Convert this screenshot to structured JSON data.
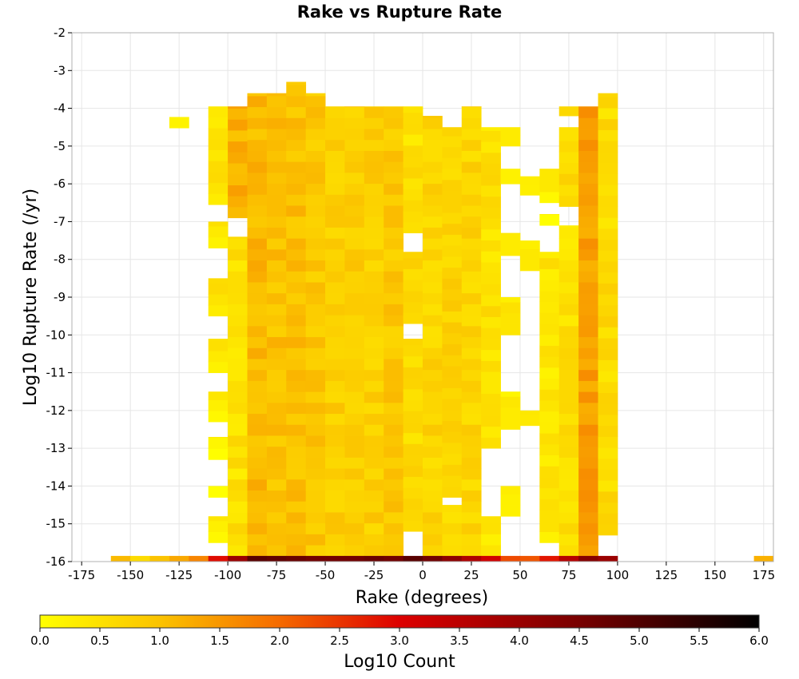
{
  "chart_data": {
    "type": "heatmap",
    "title": "Rake vs Rupture Rate",
    "xlabel": "Rake (degrees)",
    "ylabel": "Log10 Rupture Rate (/yr)",
    "xlim": [
      -180,
      180
    ],
    "ylim": [
      -16,
      -2
    ],
    "xticks": [
      -175,
      -150,
      -125,
      -100,
      -75,
      -50,
      -25,
      0,
      25,
      50,
      75,
      100,
      125,
      150,
      175
    ],
    "yticks": [
      -2,
      -3,
      -4,
      -5,
      -6,
      -7,
      -8,
      -9,
      -10,
      -11,
      -12,
      -13,
      -14,
      -15,
      -16
    ],
    "grid": true,
    "bin_width_x": 10,
    "bin_height_y": 0.29,
    "colorbar": {
      "label": "Log10 Count",
      "range": [
        0,
        6
      ],
      "ticks": [
        "0.0",
        "0.5",
        "1.0",
        "1.5",
        "2.0",
        "2.5",
        "3.0",
        "3.5",
        "4.0",
        "4.5",
        "5.0",
        "5.5",
        "6.0"
      ],
      "stops": [
        {
          "v": 0.0,
          "color": "#ffff00"
        },
        {
          "v": 1.0,
          "color": "#fbc300"
        },
        {
          "v": 2.0,
          "color": "#f56a00"
        },
        {
          "v": 3.0,
          "color": "#dd0000"
        },
        {
          "v": 4.5,
          "color": "#780000"
        },
        {
          "v": 6.0,
          "color": "#000000"
        }
      ]
    },
    "bottom_row": {
      "y_range": [
        -16,
        -15.85
      ],
      "cells": [
        {
          "x": -155,
          "v": 1.1
        },
        {
          "x": -145,
          "v": 0.6
        },
        {
          "x": -135,
          "v": 1.0
        },
        {
          "x": -125,
          "v": 1.3
        },
        {
          "x": -115,
          "v": 1.7
        },
        {
          "x": -105,
          "v": 2.9
        },
        {
          "x": -95,
          "v": 4.0
        },
        {
          "x": -85,
          "v": 4.9
        },
        {
          "x": -75,
          "v": 4.8
        },
        {
          "x": -65,
          "v": 4.7
        },
        {
          "x": -55,
          "v": 4.6
        },
        {
          "x": -45,
          "v": 4.6
        },
        {
          "x": -35,
          "v": 4.6
        },
        {
          "x": -25,
          "v": 4.7
        },
        {
          "x": -15,
          "v": 4.6
        },
        {
          "x": -5,
          "v": 4.9
        },
        {
          "x": 5,
          "v": 4.6
        },
        {
          "x": 15,
          "v": 4.2
        },
        {
          "x": 25,
          "v": 3.7
        },
        {
          "x": 35,
          "v": 3.2
        },
        {
          "x": 45,
          "v": 2.3
        },
        {
          "x": 55,
          "v": 2.2
        },
        {
          "x": 65,
          "v": 2.8
        },
        {
          "x": 75,
          "v": 3.6
        },
        {
          "x": 85,
          "v": 4.3
        },
        {
          "x": 95,
          "v": 4.0
        },
        {
          "x": 175,
          "v": 1.2
        }
      ]
    },
    "columns": [
      {
        "x": -125,
        "ranges": [
          [
            -4.52,
            -4.23,
            0.3
          ]
        ]
      },
      {
        "x": -105,
        "ranges": [
          [
            -6.55,
            -3.95,
            0.5
          ],
          [
            -7.7,
            -7.0,
            0.4
          ],
          [
            -9.5,
            -8.5,
            0.5
          ],
          [
            -11.0,
            -10.1,
            0.4
          ],
          [
            -12.3,
            -11.5,
            0.3
          ],
          [
            -13.3,
            -12.7,
            0.2
          ],
          [
            -14.3,
            -14.0,
            0.1
          ],
          [
            -15.5,
            -14.8,
            0.3
          ]
        ]
      },
      {
        "x": -95,
        "ranges": [
          [
            -6.9,
            -3.95,
            1.2
          ],
          [
            -15.85,
            -7.4,
            0.5
          ]
        ]
      },
      {
        "x": -85,
        "ranges": [
          [
            -15.85,
            -3.6,
            1.1
          ]
        ]
      },
      {
        "x": -75,
        "ranges": [
          [
            -15.85,
            -3.6,
            1.0
          ]
        ]
      },
      {
        "x": -65,
        "ranges": [
          [
            -15.85,
            -3.3,
            1.0
          ]
        ]
      },
      {
        "x": -55,
        "ranges": [
          [
            -15.85,
            -3.6,
            0.9
          ]
        ]
      },
      {
        "x": -45,
        "ranges": [
          [
            -15.85,
            -3.95,
            0.8
          ]
        ]
      },
      {
        "x": -35,
        "ranges": [
          [
            -15.85,
            -3.95,
            0.8
          ]
        ]
      },
      {
        "x": -25,
        "ranges": [
          [
            -15.85,
            -3.95,
            0.8
          ]
        ]
      },
      {
        "x": -15,
        "ranges": [
          [
            -15.85,
            -3.95,
            0.9
          ]
        ]
      },
      {
        "x": -5,
        "ranges": [
          [
            -7.3,
            -3.95,
            0.5
          ],
          [
            -9.7,
            -7.8,
            0.6
          ],
          [
            -15.2,
            -10.1,
            0.6
          ]
        ]
      },
      {
        "x": 5,
        "ranges": [
          [
            -15.85,
            -4.2,
            0.7
          ]
        ]
      },
      {
        "x": 15,
        "ranges": [
          [
            -14.3,
            -4.5,
            0.7
          ],
          [
            -15.85,
            -14.5,
            0.6
          ]
        ]
      },
      {
        "x": 25,
        "ranges": [
          [
            -15.85,
            -3.95,
            0.7
          ]
        ]
      },
      {
        "x": 35,
        "ranges": [
          [
            -13.0,
            -4.5,
            0.5
          ],
          [
            -15.85,
            -14.8,
            0.4
          ]
        ]
      },
      {
        "x": 45,
        "ranges": [
          [
            -5.0,
            -4.5,
            0.2
          ],
          [
            -6.0,
            -5.6,
            0.1
          ],
          [
            -7.9,
            -7.3,
            0.2
          ],
          [
            -10.0,
            -9.0,
            0.3
          ],
          [
            -12.5,
            -11.5,
            0.2
          ],
          [
            -14.8,
            -14.0,
            0.1
          ]
        ]
      },
      {
        "x": 55,
        "ranges": [
          [
            -6.3,
            -5.8,
            0.1
          ],
          [
            -8.3,
            -7.5,
            0.2
          ],
          [
            -12.4,
            -12.0,
            0.2
          ]
        ]
      },
      {
        "x": 65,
        "ranges": [
          [
            -6.5,
            -5.6,
            0.3
          ],
          [
            -7.1,
            -6.8,
            0.2
          ],
          [
            -15.5,
            -7.8,
            0.4
          ]
        ]
      },
      {
        "x": 75,
        "ranges": [
          [
            -4.2,
            -3.95,
            0.6
          ],
          [
            -6.6,
            -4.5,
            0.6
          ],
          [
            -15.85,
            -7.1,
            0.5
          ]
        ]
      },
      {
        "x": 85,
        "ranges": [
          [
            -15.85,
            -3.95,
            1.4
          ]
        ]
      },
      {
        "x": 95,
        "ranges": [
          [
            -15.3,
            -3.6,
            0.6
          ]
        ]
      }
    ]
  }
}
